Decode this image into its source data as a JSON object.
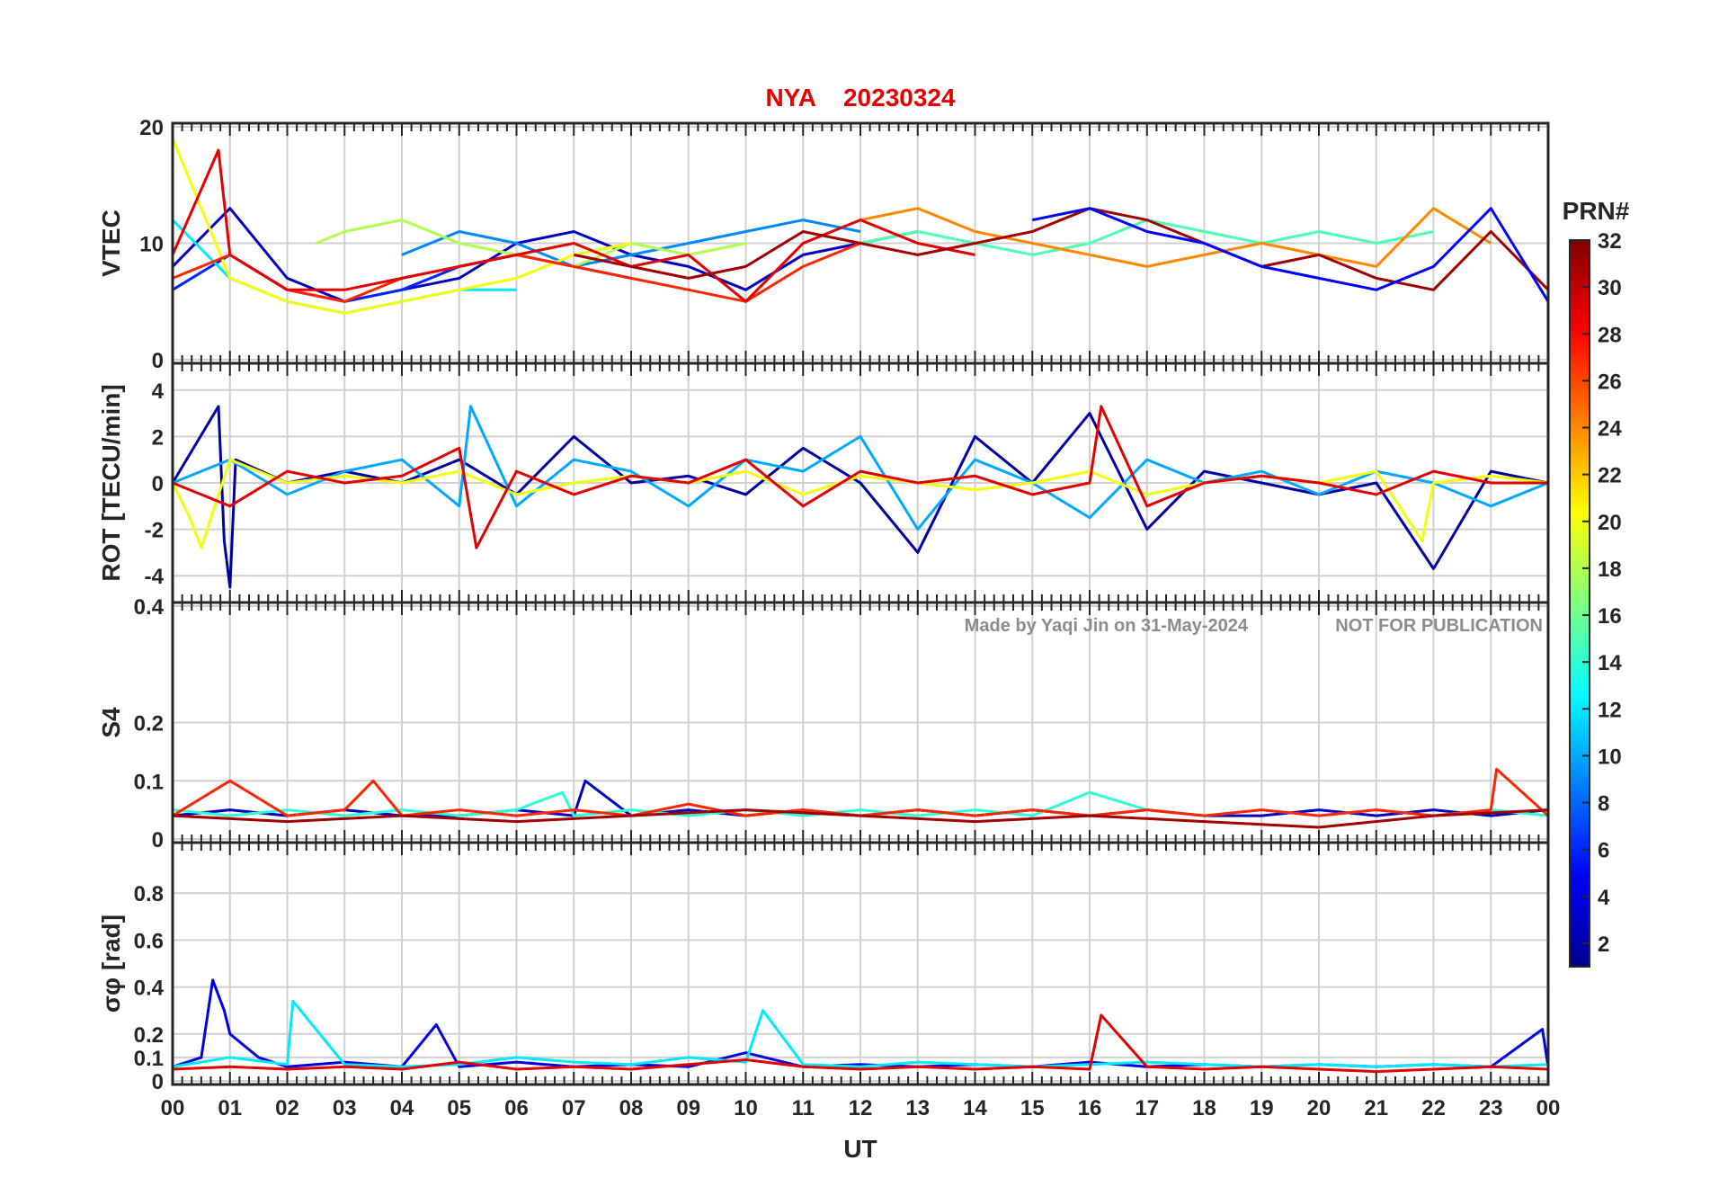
{
  "chart_data": {
    "type": "line",
    "title": {
      "station": "NYA",
      "date": "20230324"
    },
    "xlabel": "UT",
    "x_ticks": [
      "00",
      "01",
      "02",
      "03",
      "04",
      "05",
      "06",
      "07",
      "08",
      "09",
      "10",
      "11",
      "12",
      "13",
      "14",
      "15",
      "16",
      "17",
      "18",
      "19",
      "20",
      "21",
      "22",
      "23",
      "00"
    ],
    "xlim": [
      0,
      24
    ],
    "grid": true,
    "colormap": "jet",
    "colorbar": {
      "label": "PRN#",
      "range": [
        1,
        32
      ],
      "ticks": [
        "2",
        "4",
        "6",
        "8",
        "10",
        "12",
        "14",
        "16",
        "18",
        "20",
        "22",
        "24",
        "26",
        "28",
        "30",
        "32"
      ]
    },
    "watermark": {
      "author": "Made by Yaqi Jin on 31-May-2024",
      "notice": "NOT FOR PUBLICATION"
    },
    "panels": [
      {
        "id": "vtec",
        "ylabel": "VTEC",
        "ylim": [
          0,
          20
        ],
        "y_ticks": [
          "0",
          "10",
          "20"
        ],
        "series": [
          {
            "prn": 3,
            "x": [
              0,
              1,
              2,
              3,
              4,
              5,
              6,
              7,
              8,
              9,
              10,
              11,
              12,
              13
            ],
            "y": [
              8,
              13,
              7,
              5,
              6,
              7,
              10,
              11,
              9,
              8,
              6,
              9,
              10,
              11
            ]
          },
          {
            "prn": 6,
            "x": [
              0,
              1,
              2,
              3,
              4,
              5,
              6,
              7,
              8
            ],
            "y": [
              6,
              9,
              6,
              5,
              6,
              8,
              9,
              8,
              7
            ]
          },
          {
            "prn": 9,
            "x": [
              4,
              5,
              6,
              7,
              8,
              9,
              10,
              11,
              12
            ],
            "y": [
              9,
              11,
              10,
              8,
              9,
              10,
              11,
              12,
              11
            ]
          },
          {
            "prn": 12,
            "x": [
              0,
              1,
              2,
              3,
              4,
              5,
              6
            ],
            "y": [
              12,
              7,
              5,
              4,
              5,
              6,
              6
            ]
          },
          {
            "prn": 15,
            "x": [
              12,
              13,
              14,
              15,
              16,
              17,
              18,
              19,
              20,
              21,
              22
            ],
            "y": [
              10,
              11,
              10,
              9,
              10,
              12,
              11,
              10,
              11,
              10,
              11
            ]
          },
          {
            "prn": 18,
            "x": [
              2.5,
              3,
              4,
              5,
              6,
              7,
              8,
              9,
              10
            ],
            "y": [
              10,
              11,
              12,
              10,
              9,
              8,
              10,
              9,
              10
            ]
          },
          {
            "prn": 20,
            "x": [
              0,
              1,
              2,
              3,
              4,
              5,
              6,
              7,
              8
            ],
            "y": [
              19,
              7,
              5,
              4,
              5,
              6,
              7,
              9,
              10
            ]
          },
          {
            "prn": 24,
            "x": [
              12,
              13,
              14,
              15,
              16,
              17,
              18,
              19,
              20,
              21,
              22,
              23
            ],
            "y": [
              12,
              13,
              11,
              10,
              9,
              8,
              9,
              10,
              9,
              8,
              13,
              10
            ]
          },
          {
            "prn": 27,
            "x": [
              0,
              1,
              2,
              3,
              4,
              5,
              6,
              7,
              8,
              9,
              10,
              11,
              12
            ],
            "y": [
              7,
              9,
              6,
              5,
              7,
              8,
              9,
              8,
              7,
              6,
              5,
              8,
              10
            ]
          },
          {
            "prn": 29,
            "x": [
              0,
              0.8,
              1,
              2,
              3,
              4,
              5,
              6,
              7,
              8,
              9,
              10,
              11,
              12,
              13,
              14
            ],
            "y": [
              9,
              18,
              9,
              6,
              6,
              7,
              8,
              9,
              10,
              8,
              9,
              5,
              10,
              12,
              10,
              9
            ]
          },
          {
            "prn": 31,
            "x": [
              7,
              8,
              9,
              10,
              11,
              12,
              13,
              14,
              15,
              16,
              17,
              18,
              19,
              20,
              21,
              22,
              23,
              24
            ],
            "y": [
              9,
              8,
              7,
              8,
              11,
              10,
              9,
              10,
              11,
              13,
              12,
              10,
              8,
              9,
              7,
              6,
              11,
              6
            ]
          },
          {
            "prn": 5,
            "x": [
              15,
              16,
              17,
              18,
              19,
              20,
              21,
              22,
              23,
              24
            ],
            "y": [
              12,
              13,
              11,
              10,
              8,
              7,
              6,
              8,
              13,
              5
            ]
          }
        ]
      },
      {
        "id": "rot",
        "ylabel": "ROT [TECU/min]",
        "ylim": [
          -5,
          5
        ],
        "y_ticks": [
          "-4",
          "-2",
          "0",
          "2",
          "4"
        ],
        "series": [
          {
            "prn": 2,
            "x": [
              0,
              0.8,
              0.9,
              1,
              1.1,
              2,
              3,
              4,
              5,
              6,
              7,
              8,
              9,
              10,
              11,
              12,
              13,
              14,
              15,
              16,
              17,
              18,
              19,
              20,
              21,
              22,
              23,
              24
            ],
            "y": [
              0,
              3.3,
              -2.5,
              -4.5,
              1,
              0,
              0.5,
              0,
              1,
              -0.5,
              2,
              0,
              0.3,
              -0.5,
              1.5,
              0,
              -3,
              2,
              0,
              3,
              -2,
              0.5,
              0,
              -0.5,
              0,
              -3.7,
              0.5,
              0
            ]
          },
          {
            "prn": 10,
            "x": [
              0,
              1,
              2,
              3,
              4,
              5,
              5.2,
              6,
              7,
              8,
              9,
              10,
              11,
              12,
              13,
              14,
              15,
              16,
              17,
              18,
              19,
              20,
              21,
              22,
              23,
              24
            ],
            "y": [
              0,
              1,
              -0.5,
              0.5,
              1,
              -1,
              3.3,
              -1,
              1,
              0.5,
              -1,
              1,
              0.5,
              2,
              -2,
              1,
              0,
              -1.5,
              1,
              0,
              0.5,
              -0.5,
              0.5,
              0,
              -1,
              0
            ]
          },
          {
            "prn": 20,
            "x": [
              0,
              0.3,
              0.5,
              1,
              2,
              3,
              4,
              5,
              6,
              7,
              8,
              9,
              10,
              11,
              12,
              13,
              14,
              15,
              16,
              17,
              18,
              19,
              20,
              21,
              21.8,
              22,
              23,
              24
            ],
            "y": [
              0,
              -1.5,
              -2.8,
              1,
              0,
              0.3,
              0,
              0.5,
              -0.5,
              0,
              0.3,
              0,
              0.5,
              -0.5,
              0.3,
              0,
              -0.3,
              0,
              0.5,
              -0.5,
              0,
              0.3,
              0,
              0.5,
              -2.5,
              0,
              0.3,
              0
            ]
          },
          {
            "prn": 29,
            "x": [
              0,
              1,
              2,
              3,
              4,
              5,
              5.3,
              6,
              7,
              8,
              9,
              10,
              11,
              12,
              13,
              14,
              15,
              16,
              16.2,
              17,
              18,
              19,
              20,
              21,
              22,
              23,
              24
            ],
            "y": [
              0,
              -1,
              0.5,
              0,
              0.3,
              1.5,
              -2.8,
              0.5,
              -0.5,
              0.3,
              0,
              1,
              -1,
              0.5,
              0,
              0.3,
              -0.5,
              0,
              3.3,
              -1,
              0,
              0.3,
              0,
              -0.5,
              0.5,
              0,
              0
            ]
          }
        ]
      },
      {
        "id": "s4",
        "ylabel": "S4",
        "ylim": [
          0,
          0.4
        ],
        "y_ticks": [
          "0",
          "0.1",
          "0.2",
          "0.4"
        ],
        "series": [
          {
            "prn": 3,
            "x": [
              0,
              1,
              2,
              3,
              4,
              5,
              6,
              7,
              7.2,
              8,
              9,
              10,
              11,
              12,
              13,
              14,
              15,
              16,
              17,
              18,
              19,
              20,
              21,
              22,
              23,
              24
            ],
            "y": [
              0.04,
              0.05,
              0.04,
              0.05,
              0.04,
              0.04,
              0.05,
              0.04,
              0.1,
              0.04,
              0.05,
              0.04,
              0.05,
              0.04,
              0.05,
              0.04,
              0.05,
              0.04,
              0.05,
              0.04,
              0.04,
              0.05,
              0.04,
              0.05,
              0.04,
              0.05
            ]
          },
          {
            "prn": 14,
            "x": [
              0,
              1,
              2,
              3,
              4,
              5,
              6,
              6.8,
              7,
              8,
              9,
              10,
              11,
              12,
              13,
              14,
              15,
              16,
              17,
              18,
              19,
              20,
              21,
              22,
              23,
              24
            ],
            "y": [
              0.05,
              0.04,
              0.05,
              0.04,
              0.05,
              0.04,
              0.05,
              0.08,
              0.04,
              0.05,
              0.04,
              0.05,
              0.04,
              0.05,
              0.04,
              0.05,
              0.04,
              0.08,
              0.05,
              0.04,
              0.05,
              0.04,
              0.05,
              0.04,
              0.05,
              0.04
            ]
          },
          {
            "prn": 27,
            "x": [
              0,
              1,
              2,
              3,
              3.5,
              4,
              5,
              6,
              7,
              8,
              9,
              10,
              11,
              12,
              13,
              14,
              15,
              16,
              17,
              18,
              19,
              20,
              21,
              22,
              23,
              23.1,
              24
            ],
            "y": [
              0.04,
              0.1,
              0.04,
              0.05,
              0.1,
              0.04,
              0.05,
              0.04,
              0.05,
              0.04,
              0.06,
              0.04,
              0.05,
              0.04,
              0.05,
              0.04,
              0.05,
              0.04,
              0.05,
              0.04,
              0.05,
              0.04,
              0.05,
              0.04,
              0.05,
              0.12,
              0.04
            ]
          },
          {
            "prn": 31,
            "x": [
              0,
              2,
              4,
              6,
              8,
              10,
              12,
              14,
              16,
              18,
              20,
              22,
              24
            ],
            "y": [
              0.04,
              0.03,
              0.04,
              0.03,
              0.04,
              0.05,
              0.04,
              0.03,
              0.04,
              0.03,
              0.02,
              0.04,
              0.05
            ]
          }
        ]
      },
      {
        "id": "sigma",
        "ylabel": "σφ [rad]",
        "ylim": [
          0,
          1
        ],
        "y_ticks": [
          "0",
          "0.1",
          "0.2",
          "0.4",
          "0.6",
          "0.8"
        ],
        "series": [
          {
            "prn": 4,
            "x": [
              0,
              0.5,
              0.7,
              0.9,
              1,
              1.5,
              2,
              3,
              4,
              4.6,
              5,
              6,
              7,
              8,
              9,
              10,
              11,
              12,
              13,
              14,
              15,
              16,
              17,
              18,
              19,
              20,
              21,
              22,
              23,
              23.9,
              24
            ],
            "y": [
              0.06,
              0.1,
              0.43,
              0.3,
              0.2,
              0.1,
              0.06,
              0.08,
              0.06,
              0.24,
              0.06,
              0.08,
              0.06,
              0.07,
              0.06,
              0.12,
              0.06,
              0.07,
              0.06,
              0.07,
              0.06,
              0.08,
              0.06,
              0.07,
              0.06,
              0.07,
              0.06,
              0.07,
              0.06,
              0.22,
              0.06
            ]
          },
          {
            "prn": 12,
            "x": [
              0,
              1,
              2,
              2.1,
              3,
              4,
              5,
              6,
              7,
              8,
              9,
              10,
              10.3,
              11,
              12,
              13,
              14,
              15,
              16,
              17,
              18,
              19,
              20,
              21,
              22,
              23,
              24
            ],
            "y": [
              0.06,
              0.1,
              0.07,
              0.34,
              0.07,
              0.06,
              0.07,
              0.1,
              0.08,
              0.07,
              0.1,
              0.08,
              0.3,
              0.07,
              0.06,
              0.08,
              0.07,
              0.06,
              0.07,
              0.08,
              0.07,
              0.06,
              0.07,
              0.06,
              0.07,
              0.06,
              0.07
            ]
          },
          {
            "prn": 29,
            "x": [
              0,
              1,
              2,
              3,
              4,
              5,
              6,
              7,
              8,
              9,
              10,
              11,
              12,
              13,
              14,
              15,
              16,
              16.2,
              17,
              18,
              19,
              20,
              21,
              22,
              23,
              24
            ],
            "y": [
              0.05,
              0.06,
              0.05,
              0.06,
              0.05,
              0.08,
              0.05,
              0.06,
              0.05,
              0.07,
              0.09,
              0.06,
              0.05,
              0.06,
              0.05,
              0.06,
              0.05,
              0.28,
              0.06,
              0.05,
              0.06,
              0.05,
              0.04,
              0.05,
              0.06,
              0.05
            ]
          }
        ]
      }
    ]
  }
}
